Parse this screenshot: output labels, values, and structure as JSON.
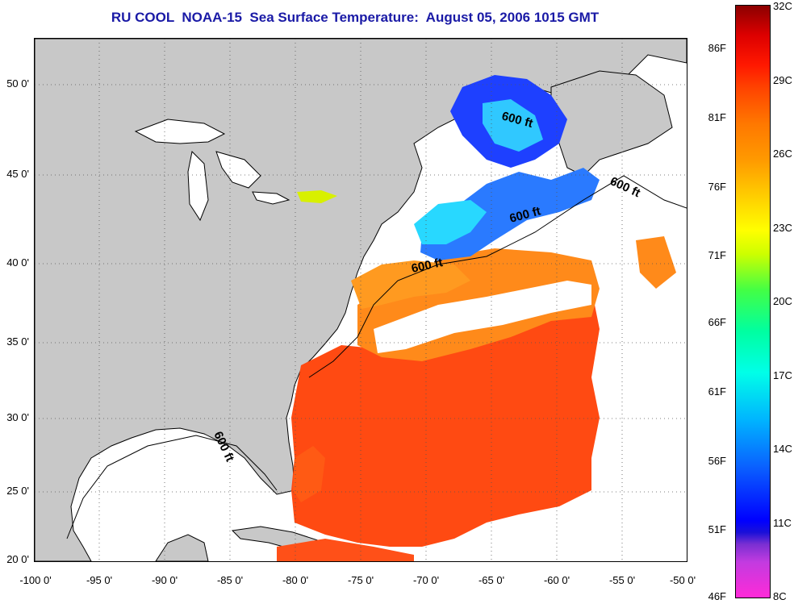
{
  "title": "RU COOL  NOAA-15  Sea Surface Temperature:  August 05, 2006 1015 GMT",
  "axes": {
    "lat_labels": [
      "50 0'",
      "45 0'",
      "40 0'",
      "35 0'",
      "30 0'",
      "25 0'",
      "20 0'"
    ],
    "lon_labels": [
      "-100 0'",
      "-95 0'",
      "-90 0'",
      "-85 0'",
      "-80 0'",
      "-75 0'",
      "-70 0'",
      "-65 0'",
      "-60 0'",
      "-55 0'",
      "-50 0'"
    ]
  },
  "contour_label": "600 ft",
  "colorbar": {
    "fahrenheit": [
      "86F",
      "81F",
      "76F",
      "71F",
      "66F",
      "61F",
      "56F",
      "51F",
      "46F"
    ],
    "celsius": [
      "32C",
      "29C",
      "26C",
      "23C",
      "20C",
      "17C",
      "14C",
      "11C",
      "8C"
    ]
  },
  "colors": {
    "land": "#c8c8c8",
    "water_nodata": "#ffffff",
    "title": "#1a1aa6",
    "warm": "#ff4a12",
    "mid": "#ff8a1a",
    "cool": "#1e6cff"
  }
}
